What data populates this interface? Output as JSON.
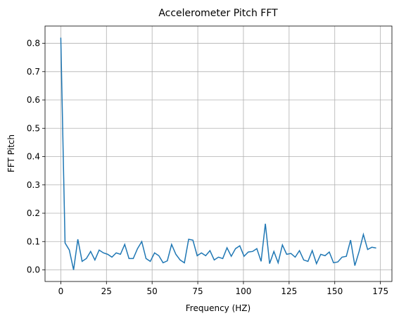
{
  "chart_data": {
    "type": "line",
    "title": "Accelerometer Pitch FFT",
    "x_label": "Frequency (HZ)",
    "y_label": "FFT Pitch",
    "x": [
      0,
      2.33,
      4.67,
      7,
      9.33,
      11.67,
      14,
      16.33,
      18.67,
      21,
      23.33,
      25.67,
      28,
      30.33,
      32.67,
      35,
      37.33,
      39.67,
      42,
      44.33,
      46.67,
      49,
      51.33,
      53.67,
      56,
      58.33,
      60.67,
      63,
      65.33,
      67.67,
      70,
      72.33,
      74.67,
      77,
      79.33,
      81.67,
      84,
      86.33,
      88.67,
      91,
      93.33,
      95.67,
      98,
      100.33,
      102.67,
      105,
      107.33,
      109.67,
      112,
      114.33,
      116.67,
      119,
      121.33,
      123.67,
      126,
      128.33,
      130.67,
      133,
      135.33,
      137.67,
      140,
      142.33,
      144.67,
      147,
      149.33,
      151.67,
      154,
      156.33,
      158.67,
      161,
      163.33,
      165.67,
      168,
      170.33,
      172.67
    ],
    "series": [
      {
        "name": "FFT Pitch",
        "color": "#1f77b4",
        "values": [
          0.82,
          0.095,
          0.07,
          0.0,
          0.108,
          0.03,
          0.04,
          0.065,
          0.035,
          0.07,
          0.06,
          0.055,
          0.045,
          0.06,
          0.055,
          0.09,
          0.04,
          0.04,
          0.075,
          0.1,
          0.04,
          0.03,
          0.06,
          0.05,
          0.025,
          0.032,
          0.09,
          0.055,
          0.035,
          0.025,
          0.108,
          0.105,
          0.05,
          0.06,
          0.05,
          0.068,
          0.035,
          0.045,
          0.04,
          0.078,
          0.048,
          0.075,
          0.085,
          0.048,
          0.063,
          0.065,
          0.075,
          0.03,
          0.163,
          0.022,
          0.065,
          0.025,
          0.088,
          0.055,
          0.058,
          0.045,
          0.068,
          0.035,
          0.03,
          0.068,
          0.022,
          0.055,
          0.05,
          0.063,
          0.025,
          0.028,
          0.045,
          0.048,
          0.105,
          0.015,
          0.065,
          0.125,
          0.072,
          0.08,
          0.077
        ]
      }
    ],
    "xlim": [
      -8.63,
      181.3
    ],
    "ylim": [
      -0.041,
      0.861
    ],
    "xticks": [
      0,
      25,
      50,
      75,
      100,
      125,
      150,
      175
    ],
    "yticks": [
      {
        "value": 0,
        "label": "0.0"
      },
      0.1,
      0.2,
      0.3,
      0.4,
      0.5,
      0.6,
      0.7,
      0.8
    ],
    "grid": true
  }
}
